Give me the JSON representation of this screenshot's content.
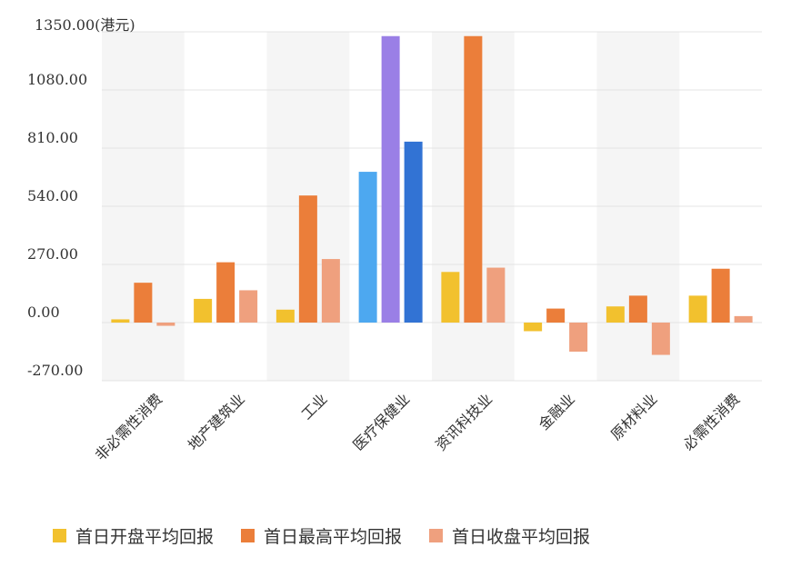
{
  "chart_data": {
    "type": "bar",
    "y_unit_label": "1350.00(港元)",
    "ylim": [
      -270,
      1350
    ],
    "yticks": [
      "-270.00",
      "0.00",
      "270.00",
      "540.00",
      "810.00",
      "1080.00"
    ],
    "ytick_values": [
      -270,
      0,
      270,
      540,
      810,
      1080
    ],
    "grid": true,
    "legend_position": "bottom",
    "categories": [
      "非必需性消费",
      "地产建筑业",
      "工业",
      "医疗保健业",
      "资讯科技业",
      "金融业",
      "原材料业",
      "必需性消费"
    ],
    "series": [
      {
        "name": "首日开盘平均回报",
        "color": "#F2C12E",
        "values": [
          15,
          110,
          60,
          700,
          235,
          -40,
          75,
          125
        ]
      },
      {
        "name": "首日最高平均回报",
        "color": "#EB7E3A",
        "values": [
          185,
          280,
          590,
          1330,
          1330,
          65,
          125,
          250
        ]
      },
      {
        "name": "首日收盘平均回报",
        "color": "#EFA07E",
        "values": [
          -15,
          150,
          295,
          840,
          255,
          -135,
          -150,
          30
        ]
      }
    ],
    "highlight": {
      "category": "医疗保健业",
      "colors": [
        "#4DA8F0",
        "#9A7FE6",
        "#3273D4"
      ]
    }
  }
}
